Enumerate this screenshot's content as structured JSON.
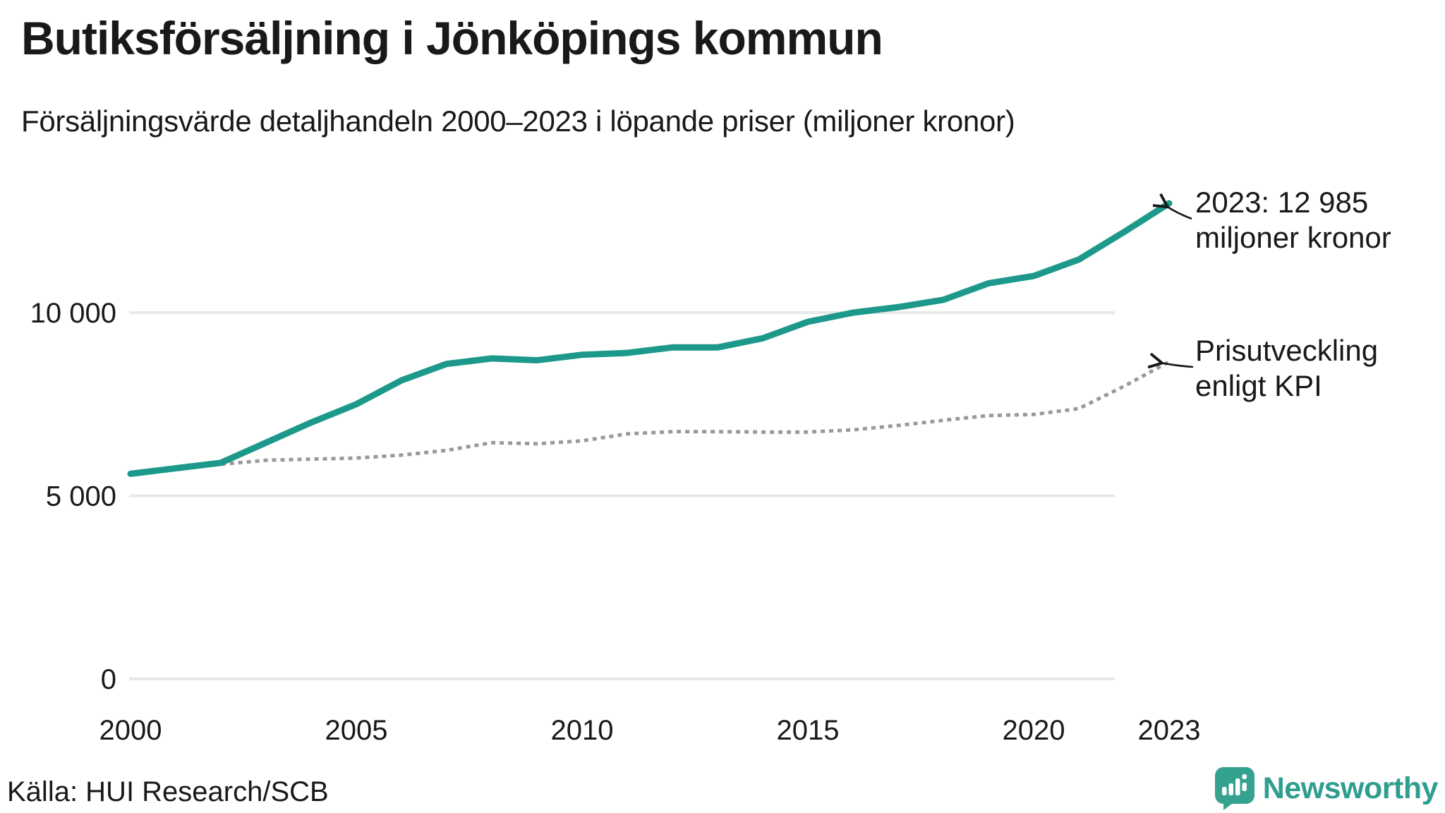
{
  "header": {
    "title": "Butiksförsäljning i Jönköpings kommun",
    "subtitle": "Försäljningsvärde detaljhandeln 2000–2023 i löpande priser (miljoner kronor)"
  },
  "footer": {
    "source": "Källa: HUI Research/SCB",
    "brand_name": "Newsworthy",
    "brand_icon": "speech-bubble-bar-chart-icon"
  },
  "colors": {
    "sales_line": "#1d998b",
    "kpi_line": "#999999",
    "gridline": "#e8e8e8",
    "text": "#191919",
    "brand_teal": "#2f9e8f",
    "background": "#ffffff"
  },
  "chart_data": {
    "type": "line",
    "title": "Butiksförsäljning i Jönköpings kommun",
    "subtitle": "Försäljningsvärde detaljhandeln 2000–2023 i löpande priser (miljoner kronor)",
    "xlabel": "",
    "ylabel": "miljoner kronor",
    "xlim": [
      2000,
      2023
    ],
    "ylim": [
      0,
      13600
    ],
    "grid": "horizontal",
    "legend": "none (direct line annotations)",
    "x": [
      2000,
      2001,
      2002,
      2003,
      2004,
      2005,
      2006,
      2007,
      2008,
      2009,
      2010,
      2011,
      2012,
      2013,
      2014,
      2015,
      2016,
      2017,
      2018,
      2019,
      2020,
      2021,
      2022,
      2023
    ],
    "series": [
      {
        "name": "Butiksförsäljning, löpande priser",
        "style": "solid",
        "color": "#1d998b",
        "values": [
          5600,
          5750,
          5900,
          6450,
          7000,
          7500,
          8150,
          8600,
          8750,
          8700,
          8850,
          8900,
          9050,
          9050,
          9300,
          9750,
          10000,
          10150,
          10350,
          10800,
          11000,
          11450,
          12200,
          12985
        ]
      },
      {
        "name": "Prisutveckling enligt KPI",
        "style": "dotted",
        "color": "#999999",
        "values": [
          5600,
          5740,
          5860,
          5970,
          6000,
          6030,
          6110,
          6240,
          6450,
          6420,
          6500,
          6690,
          6750,
          6750,
          6740,
          6740,
          6800,
          6920,
          7060,
          7190,
          7220,
          7380,
          7990,
          8660
        ]
      }
    ],
    "yticks": [
      {
        "value": 0,
        "label": "0"
      },
      {
        "value": 5000,
        "label": "5 000"
      },
      {
        "value": 10000,
        "label": "10 000"
      }
    ],
    "xticks": [
      {
        "value": 2000,
        "label": "2000"
      },
      {
        "value": 2005,
        "label": "2005"
      },
      {
        "value": 2010,
        "label": "2010"
      },
      {
        "value": 2015,
        "label": "2015"
      },
      {
        "value": 2020,
        "label": "2020"
      },
      {
        "value": 2023,
        "label": "2023"
      }
    ],
    "annotations": [
      {
        "target": "sales-line-end",
        "lines": [
          "2023: 12 985",
          "miljoner kronor"
        ]
      },
      {
        "target": "kpi-line-end",
        "lines": [
          "Prisutveckling",
          "enligt KPI"
        ]
      }
    ]
  }
}
